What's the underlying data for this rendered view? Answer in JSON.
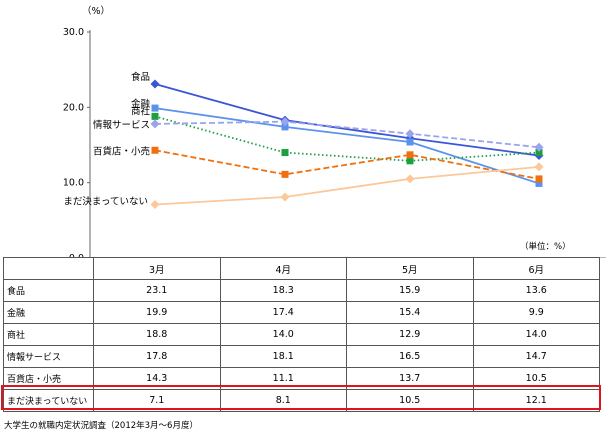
{
  "chart_data": {
    "type": "line",
    "title": "",
    "ylabel": "（%）",
    "xlabel": "",
    "ylim": [
      0,
      30
    ],
    "yticks": [
      "0.0",
      "10.0",
      "20.0",
      "30.0"
    ],
    "grid": false,
    "categories": [
      "3月",
      "4月",
      "5月",
      "6月"
    ],
    "series": [
      {
        "name": "食品",
        "values": [
          23.1,
          18.3,
          15.9,
          13.6
        ],
        "color": "#3a55d8",
        "dash": "solid",
        "marker": "diamond"
      },
      {
        "name": "金融",
        "values": [
          19.9,
          17.4,
          15.4,
          9.9
        ],
        "color": "#5b93ec",
        "dash": "solid",
        "marker": "square"
      },
      {
        "name": "商社",
        "values": [
          18.8,
          14.0,
          12.9,
          14.0
        ],
        "color": "#1c9f40",
        "dash": "dotted",
        "marker": "square"
      },
      {
        "name": "情報サービス",
        "values": [
          17.8,
          18.1,
          16.5,
          14.7
        ],
        "color": "#9aa4ee",
        "dash": "dashed",
        "marker": "diamond"
      },
      {
        "name": "百貨店・小売",
        "values": [
          14.3,
          11.1,
          13.7,
          10.5
        ],
        "color": "#f07010",
        "dash": "dashed",
        "marker": "square"
      },
      {
        "name": "まだ決まっていない",
        "values": [
          7.1,
          8.1,
          10.5,
          12.1
        ],
        "color": "#fcc79a",
        "dash": "solid",
        "marker": "diamond"
      }
    ],
    "unit_note": "（単位：%）",
    "highlighted_row": "まだ決まっていない"
  },
  "source_note": "大学生の就職内定状況調査（2012年3月～6月度）"
}
